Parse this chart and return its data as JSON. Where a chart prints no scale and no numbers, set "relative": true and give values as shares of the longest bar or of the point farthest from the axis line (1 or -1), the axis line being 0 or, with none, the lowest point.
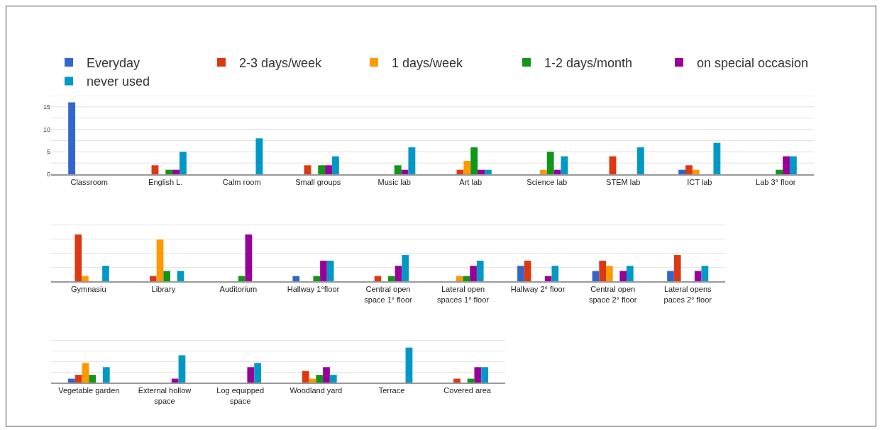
{
  "chart_data": [
    {
      "type": "bar",
      "legend": "top",
      "grid": true,
      "ylim": [
        0,
        17.5
      ],
      "yticks": [
        0,
        {
          "value": 2.5,
          "label": null
        },
        5,
        {
          "value": 7.5,
          "label": null
        },
        10,
        {
          "value": 12.5,
          "label": null
        },
        15,
        {
          "value": 17.5,
          "label": null
        }
      ],
      "categories": [
        "Classroom",
        "English L.",
        "Calm room",
        "Small groups",
        "Music lab",
        "Art lab",
        "Science lab",
        "STEM lab",
        "ICT lab",
        "Lab 3° floor"
      ],
      "series": [
        {
          "name": "Everyday",
          "color": "#3366cc",
          "values": [
            16,
            0,
            0,
            0,
            0,
            0,
            0,
            0,
            1,
            0
          ]
        },
        {
          "name": "2-3 days/week",
          "color": "#dc3912",
          "values": [
            0,
            2,
            0,
            2,
            0,
            1,
            0,
            4,
            2,
            0
          ]
        },
        {
          "name": "1 days/week",
          "color": "#ff9900",
          "values": [
            0,
            0,
            0,
            0,
            0,
            3,
            1,
            0,
            1,
            0
          ]
        },
        {
          "name": "1-2 days/month",
          "color": "#109618",
          "values": [
            0,
            1,
            0,
            2,
            2,
            6,
            5,
            0,
            0,
            1
          ]
        },
        {
          "name": "on special occasion",
          "color": "#990099",
          "values": [
            0,
            1,
            0,
            2,
            1,
            1,
            1,
            0,
            0,
            4
          ]
        },
        {
          "name": "never used",
          "color": "#0099c6",
          "values": [
            0,
            5,
            8,
            4,
            6,
            1,
            4,
            6,
            7,
            4
          ]
        }
      ]
    },
    {
      "type": "bar",
      "relative": true,
      "grid": true,
      "categories": [
        "Gymnasiu",
        "Library",
        "Auditorium",
        "Hallway 1°floor",
        "Central open space 1° floor",
        "Lateral open spaces 1° floor",
        "Hallway 2° floor",
        "Central open space 2° floor",
        "Lateral opens paces 2° floor"
      ],
      "series": [
        {
          "color": "#3366cc",
          "values": [
            0,
            0,
            0,
            0.11,
            0,
            0,
            0.33,
            0.22,
            0.22
          ]
        },
        {
          "color": "#dc3912",
          "values": [
            1,
            0.11,
            0,
            0,
            0.11,
            0,
            0.44,
            0.44,
            0.56
          ]
        },
        {
          "color": "#ff9900",
          "values": [
            0.11,
            0.89,
            0,
            0,
            0,
            0.11,
            0,
            0.33,
            0
          ]
        },
        {
          "color": "#109618",
          "values": [
            0,
            0.22,
            0.11,
            0.11,
            0.11,
            0.11,
            0,
            0,
            0
          ]
        },
        {
          "color": "#990099",
          "values": [
            0,
            0,
            1,
            0.44,
            0.33,
            0.33,
            0.11,
            0.22,
            0.22
          ]
        },
        {
          "color": "#0099c6",
          "values": [
            0.33,
            0.22,
            0,
            0.44,
            0.56,
            0.44,
            0.33,
            0.33,
            0.33
          ]
        }
      ]
    },
    {
      "type": "bar",
      "relative": true,
      "grid": true,
      "categories": [
        "Vegetable garden",
        "External hollow space",
        "Log equipped space",
        "Woodland yard",
        "Terrace",
        "Covered area"
      ],
      "series": [
        {
          "color": "#3366cc",
          "values": [
            0.11,
            0,
            0,
            0,
            0,
            0
          ]
        },
        {
          "color": "#dc3912",
          "values": [
            0.22,
            0,
            0,
            0.33,
            0,
            0.11
          ]
        },
        {
          "color": "#ff9900",
          "values": [
            0.56,
            0,
            0,
            0.11,
            0,
            0
          ]
        },
        {
          "color": "#109618",
          "values": [
            0.22,
            0,
            0,
            0.22,
            0,
            0.11
          ]
        },
        {
          "color": "#990099",
          "values": [
            0,
            0.11,
            0.44,
            0.44,
            0,
            0.44
          ]
        },
        {
          "color": "#0099c6",
          "values": [
            0.44,
            0.78,
            0.56,
            0.22,
            1,
            0.44
          ]
        }
      ]
    }
  ]
}
